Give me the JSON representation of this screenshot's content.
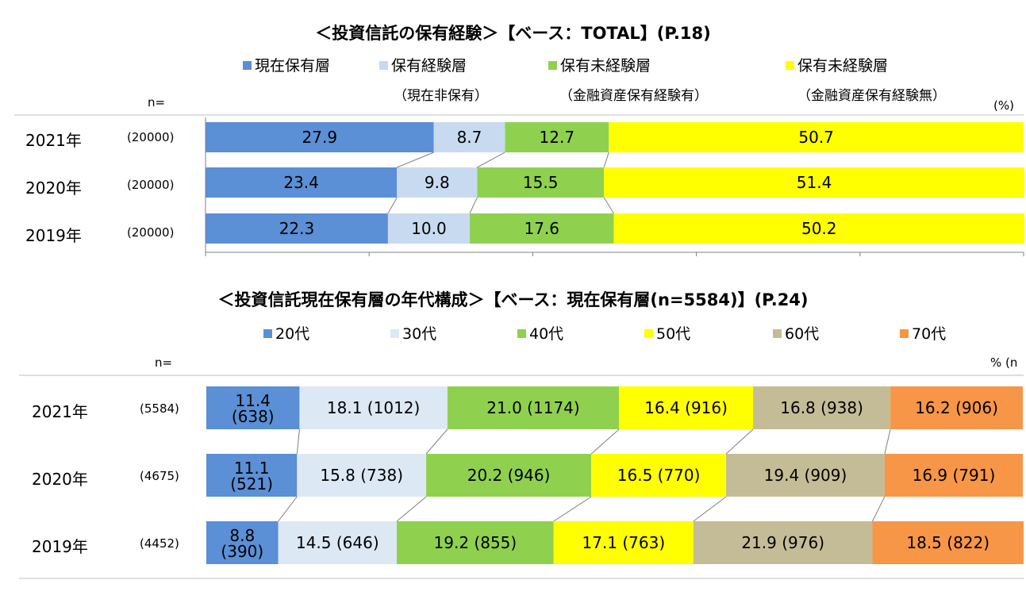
{
  "chart_data": [
    {
      "type": "bar",
      "orientation": "horizontal",
      "stacked": true,
      "title": "＜投資信託の保有経験＞【ベース：TOTAL】(P.18)",
      "n_label": "n=",
      "unit_label": "(%)",
      "legend": [
        {
          "name": "現在保有層",
          "sub": "",
          "color": "#5B8FD6"
        },
        {
          "name": "保有経験層",
          "sub": "（現在非保有）",
          "color": "#C8DAF0"
        },
        {
          "name": "保有未経験層",
          "sub": "（金融資産保有経験有）",
          "color": "#8FD14F"
        },
        {
          "name": "保有未経験層",
          "sub": "（金融資産保有経験無）",
          "color": "#FFFF00"
        }
      ],
      "categories": [
        "2021年",
        "2020年",
        "2019年"
      ],
      "n": [
        "(20000)",
        "(20000)",
        "(20000)"
      ],
      "series": [
        {
          "name": "現在保有層",
          "values": [
            27.9,
            23.4,
            22.3
          ],
          "labels": [
            "27.9",
            "23.4",
            "22.3"
          ]
        },
        {
          "name": "保有経験層",
          "values": [
            8.7,
            9.8,
            10.0
          ],
          "labels": [
            "8.7",
            "9.8",
            "10.0"
          ]
        },
        {
          "name": "保有未経験層",
          "values": [
            12.7,
            15.5,
            17.6
          ],
          "labels": [
            "12.7",
            "15.5",
            "17.6"
          ]
        },
        {
          "name": "保有未経験層",
          "values": [
            50.7,
            51.4,
            50.2
          ],
          "labels": [
            "50.7",
            "51.4",
            "50.2"
          ]
        }
      ],
      "xlim": [
        0,
        100
      ]
    },
    {
      "type": "bar",
      "orientation": "horizontal",
      "stacked": true,
      "title": "＜投資信託現在保有層の年代構成＞【ベース：現在保有層(n=5584)】(P.24)",
      "n_label": "n=",
      "unit_label": "% (n",
      "legend": [
        {
          "name": "20代",
          "color": "#5B8FD6"
        },
        {
          "name": "30代",
          "color": "#DDE8F5"
        },
        {
          "name": "40代",
          "color": "#8FD14F"
        },
        {
          "name": "50代",
          "color": "#FFFF00"
        },
        {
          "name": "60代",
          "color": "#C4BC96"
        },
        {
          "name": "70代",
          "color": "#F79646"
        }
      ],
      "categories": [
        "2021年",
        "2020年",
        "2019年"
      ],
      "n": [
        "(5584)",
        "(4675)",
        "(4452)"
      ],
      "series": [
        {
          "name": "20代",
          "values": [
            11.4,
            11.1,
            8.8
          ],
          "counts": [
            "(638)",
            "(521)",
            "(390)"
          ]
        },
        {
          "name": "30代",
          "values": [
            18.1,
            15.8,
            14.5
          ],
          "counts": [
            "(1012)",
            "(738)",
            "(646)"
          ]
        },
        {
          "name": "40代",
          "values": [
            21.0,
            20.2,
            19.2
          ],
          "counts": [
            "(1174)",
            "(946)",
            "(855)"
          ]
        },
        {
          "name": "50代",
          "values": [
            16.4,
            16.5,
            17.1
          ],
          "counts": [
            "(916)",
            "(770)",
            "(763)"
          ]
        },
        {
          "name": "60代",
          "values": [
            16.8,
            19.4,
            21.9
          ],
          "counts": [
            "(938)",
            "(909)",
            "(976)"
          ]
        },
        {
          "name": "70代",
          "values": [
            16.2,
            16.9,
            18.5
          ],
          "counts": [
            "(906)",
            "(791)",
            "(822)"
          ]
        }
      ],
      "xlim": [
        0,
        100
      ]
    }
  ]
}
